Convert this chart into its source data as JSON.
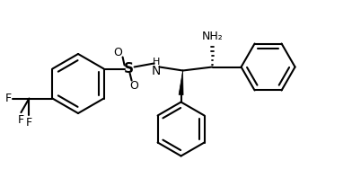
{
  "bg_color": "#ffffff",
  "line_color": "#000000",
  "line_width": 1.5,
  "font_size": 9,
  "fig_width": 3.92,
  "fig_height": 1.98,
  "dpi": 100,
  "xlim": [
    0,
    392
  ],
  "ylim": [
    0,
    198
  ]
}
